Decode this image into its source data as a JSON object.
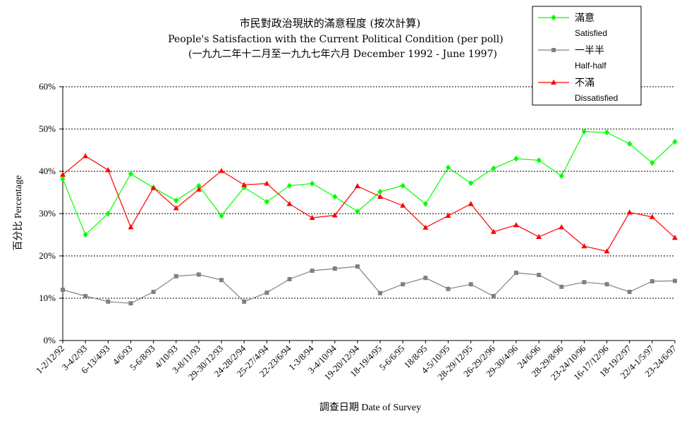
{
  "chart_data": {
    "type": "line",
    "title": "市民對政治現狀的滿意程度 (按次計算)",
    "subtitle": "People's Satisfaction with the Current Political Condition (per poll)",
    "subtitle2": "(一九九二年十二月至一九九七年六月 December 1992 - June 1997)",
    "xlabel": "調查日期 Date of Survey",
    "ylabel": "百分比 Percentage",
    "ylim": [
      0,
      60
    ],
    "yticks": [
      "0%",
      "10%",
      "20%",
      "30%",
      "40%",
      "50%",
      "60%"
    ],
    "grid": true,
    "legend_position": "top-right",
    "categories": [
      "1-2/12/92",
      "3-4/2/93",
      "6-13/4/93",
      "4/6/93",
      "5-6/8/93",
      "4/10/93",
      "3-8/11/93",
      "29-30/12/93",
      "24-28/2/94",
      "25-27/4/94",
      "22-23/6/94",
      "1-3/8/94",
      "3-4/10/94",
      "19-20/12/94",
      "18-19/4/95",
      "5-6/6/95",
      "18/8/95",
      "4-5/10/95",
      "28-29/12/95",
      "26-29/2/96",
      "29-30/4/96",
      "24/6/96",
      "28-29/8/96",
      "23-24/10/96",
      "16-17/12/96",
      "18-19/2/97",
      "22/4-1/5/97",
      "23-24/6/97"
    ],
    "series": [
      {
        "name": "滿意",
        "name_en": "Satisfied",
        "color": "#00ff00",
        "marker": "diamond",
        "values": [
          38.2,
          25.0,
          30.0,
          39.4,
          36.1,
          33.1,
          36.6,
          29.5,
          36.2,
          32.8,
          36.6,
          37.1,
          34.0,
          30.5,
          35.2,
          36.6,
          32.3,
          40.9,
          37.2,
          40.7,
          43.0,
          42.6,
          38.9,
          49.4,
          49.2,
          46.5,
          42.0,
          47.0
        ]
      },
      {
        "name": "一半半",
        "name_en": "Half-half",
        "color": "#808080",
        "marker": "square",
        "values": [
          12.0,
          10.5,
          9.2,
          8.8,
          11.5,
          15.2,
          15.6,
          14.3,
          9.2,
          11.3,
          14.5,
          16.5,
          17.0,
          17.5,
          11.2,
          13.3,
          14.8,
          12.2,
          13.3,
          10.5,
          16.0,
          15.5,
          12.7,
          13.8,
          13.3,
          11.5,
          14.0,
          14.1
        ]
      },
      {
        "name": "不滿",
        "name_en": "Dissatisfied",
        "color": "#ff0000",
        "marker": "triangle",
        "values": [
          39.2,
          43.6,
          40.3,
          26.8,
          36.1,
          31.3,
          35.7,
          40.1,
          36.8,
          37.1,
          32.3,
          29.0,
          29.6,
          36.5,
          34.0,
          31.9,
          26.7,
          29.5,
          32.3,
          25.7,
          27.3,
          24.5,
          26.8,
          22.3,
          21.1,
          30.3,
          29.2,
          24.3
        ]
      }
    ]
  }
}
